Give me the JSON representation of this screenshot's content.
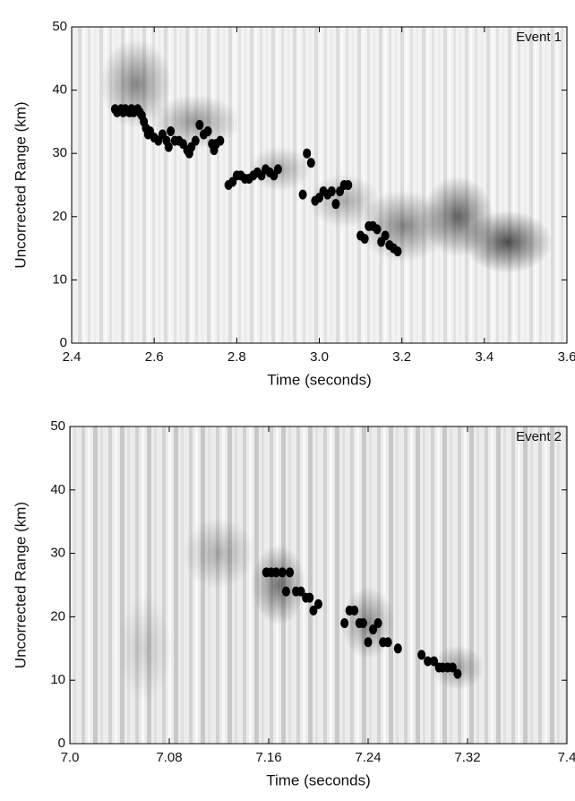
{
  "chart_data": [
    {
      "type": "scatter",
      "annotation": "Event 1",
      "xlabel": "Time (seconds)",
      "ylabel": "Uncorrected Range (km)",
      "xlim": [
        2.4,
        3.6
      ],
      "ylim": [
        0,
        50
      ],
      "xticks": [
        2.4,
        2.6,
        2.8,
        {
          "value": 3,
          "label": "3.0"
        },
        3.2,
        3.4,
        3.6
      ],
      "yticks": [
        0,
        10,
        20,
        30,
        40,
        50
      ],
      "color": "#000000",
      "x": [
        2.505,
        2.51,
        2.52,
        2.525,
        2.53,
        2.54,
        2.545,
        2.55,
        2.56,
        2.565,
        2.57,
        2.575,
        2.58,
        2.585,
        2.59,
        2.6,
        2.61,
        2.62,
        2.63,
        2.635,
        2.64,
        2.65,
        2.66,
        2.67,
        2.68,
        2.685,
        2.69,
        2.7,
        2.71,
        2.72,
        2.73,
        2.74,
        2.745,
        2.75,
        2.76,
        2.78,
        2.79,
        2.8,
        2.81,
        2.82,
        2.83,
        2.84,
        2.85,
        2.86,
        2.87,
        2.88,
        2.89,
        2.9,
        2.96,
        2.97,
        2.98,
        2.99,
        3.0,
        3.01,
        3.02,
        3.03,
        3.04,
        3.05,
        3.06,
        3.07,
        3.1,
        3.11,
        3.12,
        3.13,
        3.14,
        3.15,
        3.16,
        3.17,
        3.18,
        3.19
      ],
      "values": [
        37,
        36.5,
        37,
        36.5,
        37,
        36.5,
        37,
        36.5,
        37,
        36.5,
        36,
        35,
        34,
        33,
        33.5,
        32.5,
        32,
        33,
        32,
        31,
        33.5,
        32,
        32,
        31.5,
        30.5,
        30,
        31,
        32,
        34.5,
        33,
        33.5,
        31.5,
        30.5,
        31.5,
        32,
        25,
        25.5,
        26.5,
        26.5,
        26,
        26,
        26.5,
        27,
        26.5,
        27.5,
        27,
        26.5,
        27.5,
        23.5,
        30,
        28.5,
        22.5,
        23,
        24,
        23.5,
        24,
        22,
        24,
        25,
        25,
        17,
        16.5,
        18.5,
        18.5,
        18,
        16,
        17,
        15.5,
        15,
        14.5
      ]
    },
    {
      "type": "scatter",
      "annotation": "Event 2",
      "xlabel": "Time (seconds)",
      "ylabel": "Uncorrected Range (km)",
      "xlim": [
        7.0,
        7.4
      ],
      "ylim": [
        0,
        50
      ],
      "xticks": [
        {
          "value": 7,
          "label": "7.0"
        },
        7.08,
        7.16,
        7.24,
        7.32,
        7.4
      ],
      "yticks": [
        0,
        10,
        20,
        30,
        40,
        50
      ],
      "color": "#000000",
      "x": [
        7.158,
        7.162,
        7.166,
        7.171,
        7.174,
        7.177,
        7.182,
        7.186,
        7.19,
        7.193,
        7.196,
        7.2,
        7.221,
        7.225,
        7.229,
        7.233,
        7.236,
        7.24,
        7.244,
        7.248,
        7.252,
        7.256,
        7.264,
        7.283,
        7.288,
        7.293,
        7.297,
        7.3,
        7.304,
        7.308,
        7.312
      ],
      "values": [
        27,
        27,
        27,
        27,
        24,
        27,
        24,
        24,
        23,
        23,
        21,
        22,
        19,
        21,
        21,
        19,
        19,
        16,
        18,
        19,
        16,
        16,
        15,
        14,
        13,
        13,
        12,
        12,
        12,
        12,
        11
      ]
    }
  ]
}
